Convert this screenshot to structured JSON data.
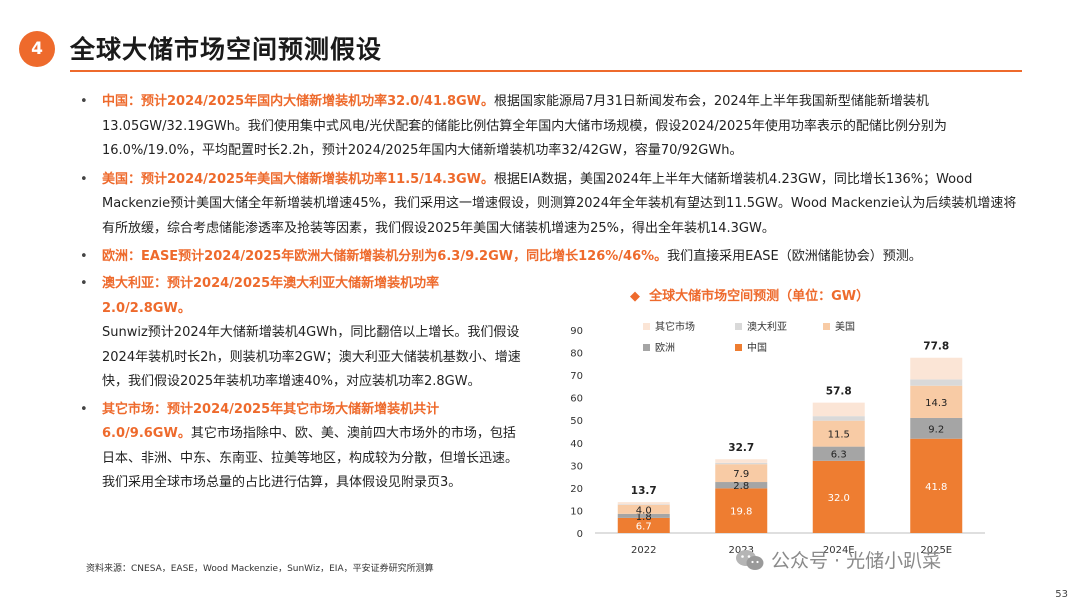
{
  "slide": {
    "number": "4",
    "title": "全球大储市场空间预测假设",
    "page": "53"
  },
  "bullets": [
    {
      "head": "中国：预计2024/2025年国内大储新增装机功率32.0/41.8GW。",
      "body": "根据国家能源局7月31日新闻发布会，2024年上半年我国新型储能新增装机13.05GW/32.19GWh。我们使用集中式风电/光伏配套的储能比例估算全年国内大储市场规模，假设2024/2025年使用功率表示的配储比例分别为16.0%/19.0%，平均配置时长2.2h，预计2024/2025年国内大储新增装机功率32/42GW，容量70/92GWh。"
    },
    {
      "head": "美国：预计2024/2025年美国大储新增装机功率11.5/14.3GW。",
      "body": "根据EIA数据，美国2024年上半年大储新增装机4.23GW，同比增长136%；Wood Mackenzie预计美国大储全年新增装机增速45%，我们采用这一增速假设，则测算2024年全年装机有望达到11.5GW。Wood Mackenzie认为后续装机增速将有所放缓，综合考虑储能渗透率及抢装等因素，我们假设2025年美国大储装机增速为25%，得出全年装机14.3GW。"
    },
    {
      "head": "欧洲：EASE预计2024/2025年欧洲大储新增装机分别为6.3/9.2GW，同比增长126%/46%。",
      "body": "我们直接采用EASE（欧洲储能协会）预测。"
    }
  ],
  "bullets_narrow": [
    {
      "head": "澳大利亚：预计2024/2025年澳大利亚大储新增装机功率2.0/2.8GW。",
      "body": "Sunwiz预计2024年大储新增装机4GWh，同比翻倍以上增长。我们假设2024年装机时长2h，则装机功率2GW；澳大利亚大储装机基数小、增速快，我们假设2025年装机功率增速40%，对应装机功率2.8GW。"
    },
    {
      "head": "其它市场：预计2024/2025年其它市场大储新增装机共计6.0/9.6GW。",
      "body": "其它市场指除中、欧、美、澳前四大市场外的市场，包括日本、非洲、中东、东南亚、拉美等地区，构成较为分散，但增长迅速。我们采用全球市场总量的占比进行估算，具体假设见附录页3。"
    }
  ],
  "bullet_glyph": "•",
  "source": "资料来源：CNESA，EASE，Wood Mackenzie，SunWiz，EIA，平安证券研究所测算",
  "watermark": "公众号 · 光储小趴菜",
  "chart_title_marker": "◆",
  "chart_data": {
    "type": "bar",
    "stacked": true,
    "title": "全球大储市场空间预测（单位：GW）",
    "categories": [
      "2022",
      "2023",
      "2024E",
      "2025E"
    ],
    "ylim": [
      0,
      90
    ],
    "yticks": [
      0,
      10,
      20,
      30,
      40,
      50,
      60,
      70,
      80,
      90
    ],
    "grid": false,
    "legend_position": "top",
    "legend_order": [
      "其它市场",
      "澳大利亚",
      "美国",
      "欧洲",
      "中国"
    ],
    "series": [
      {
        "name": "中国",
        "color": "#ee7d31",
        "values": [
          6.7,
          19.8,
          32.0,
          41.8
        ],
        "labels": [
          "6.7",
          "19.8",
          "32.0",
          "41.8"
        ],
        "label_color": "#ffffff"
      },
      {
        "name": "欧洲",
        "color": "#a5a5a5",
        "values": [
          1.8,
          2.8,
          6.3,
          9.2
        ],
        "labels": [
          "1.8",
          "2.8",
          "6.3",
          "9.2"
        ],
        "label_color": "#222222"
      },
      {
        "name": "美国",
        "color": "#f8cba5",
        "values": [
          4.0,
          7.9,
          11.5,
          14.3
        ],
        "labels": [
          "4.0",
          "7.9",
          "11.5",
          "14.3"
        ],
        "label_color": "#222222"
      },
      {
        "name": "澳大利亚",
        "color": "#d9d9d9",
        "values": [
          0.3,
          0.6,
          2.0,
          2.8
        ],
        "labels": [
          "",
          "",
          "",
          ""
        ],
        "label_color": "#222222"
      },
      {
        "name": "其它市场",
        "color": "#fbe5d6",
        "values": [
          0.9,
          1.6,
          6.0,
          9.6
        ],
        "labels": [
          "",
          "",
          "",
          ""
        ],
        "label_color": "#222222"
      }
    ],
    "totals": [
      "13.7",
      "32.7",
      "57.8",
      "77.8"
    ]
  }
}
